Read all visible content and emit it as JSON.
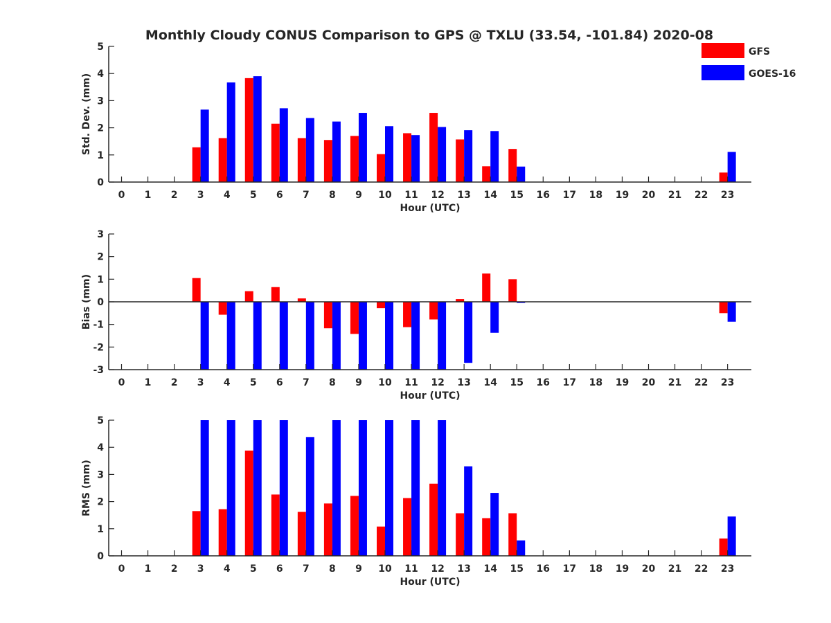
{
  "title": "Monthly Cloudy CONUS Comparison to GPS @ TXLU (33.54, -101.84) 2020-08",
  "legend": {
    "placement": "top-right",
    "entries": [
      {
        "label": "GFS",
        "color": "#ff0000"
      },
      {
        "label": "GOES-16",
        "color": "#0000ff"
      }
    ]
  },
  "chart_data": [
    {
      "type": "bar",
      "ylabel": "Std. Dev. (mm)",
      "xlabel": "Hour (UTC)",
      "ylim": [
        0,
        5
      ],
      "yticks": [
        0,
        1,
        2,
        3,
        4,
        5
      ],
      "categories": [
        "0",
        "1",
        "2",
        "3",
        "4",
        "5",
        "6",
        "7",
        "8",
        "9",
        "10",
        "11",
        "12",
        "13",
        "14",
        "15",
        "16",
        "17",
        "18",
        "19",
        "20",
        "21",
        "22",
        "23"
      ],
      "series": [
        {
          "name": "GFS",
          "color": "#ff0000",
          "values": [
            null,
            null,
            null,
            1.28,
            1.62,
            3.83,
            2.15,
            1.62,
            1.55,
            1.7,
            1.03,
            1.8,
            2.55,
            1.57,
            0.58,
            1.22,
            null,
            null,
            null,
            null,
            null,
            null,
            null,
            0.35
          ]
        },
        {
          "name": "GOES-16",
          "color": "#0000ff",
          "values": [
            null,
            null,
            null,
            2.67,
            3.67,
            3.9,
            2.72,
            2.36,
            2.23,
            2.55,
            2.06,
            1.73,
            2.03,
            1.91,
            1.88,
            0.57,
            null,
            null,
            null,
            null,
            null,
            null,
            null,
            1.11
          ]
        }
      ]
    },
    {
      "type": "bar",
      "ylabel": "Bias (mm)",
      "xlabel": "Hour (UTC)",
      "ylim": [
        -3,
        3
      ],
      "yticks": [
        -3,
        -2,
        -1,
        0,
        1,
        2,
        3
      ],
      "zero_line": true,
      "categories": [
        "0",
        "1",
        "2",
        "3",
        "4",
        "5",
        "6",
        "7",
        "8",
        "9",
        "10",
        "11",
        "12",
        "13",
        "14",
        "15",
        "16",
        "17",
        "18",
        "19",
        "20",
        "21",
        "22",
        "23"
      ],
      "series": [
        {
          "name": "GFS",
          "color": "#ff0000",
          "values": [
            null,
            null,
            null,
            1.05,
            -0.57,
            0.47,
            0.65,
            0.15,
            -1.17,
            -1.42,
            -0.28,
            -1.12,
            -0.78,
            0.12,
            1.25,
            1.0,
            null,
            null,
            null,
            null,
            null,
            null,
            null,
            -0.5
          ]
        },
        {
          "name": "GOES-16",
          "color": "#0000ff",
          "values": [
            null,
            null,
            null,
            -3.0,
            -3.0,
            -3.0,
            -3.0,
            -3.0,
            -3.0,
            -3.0,
            -3.0,
            -3.0,
            -3.0,
            -2.7,
            -1.37,
            -0.05,
            null,
            null,
            null,
            null,
            null,
            null,
            null,
            -0.88
          ]
        }
      ]
    },
    {
      "type": "bar",
      "ylabel": "RMS (mm)",
      "xlabel": "Hour (UTC)",
      "ylim": [
        0,
        5
      ],
      "yticks": [
        0,
        1,
        2,
        3,
        4,
        5
      ],
      "categories": [
        "0",
        "1",
        "2",
        "3",
        "4",
        "5",
        "6",
        "7",
        "8",
        "9",
        "10",
        "11",
        "12",
        "13",
        "14",
        "15",
        "16",
        "17",
        "18",
        "19",
        "20",
        "21",
        "22",
        "23"
      ],
      "series": [
        {
          "name": "GFS",
          "color": "#ff0000",
          "values": [
            null,
            null,
            null,
            1.65,
            1.72,
            3.88,
            2.26,
            1.62,
            1.93,
            2.21,
            1.08,
            2.13,
            2.66,
            1.57,
            1.39,
            1.57,
            null,
            null,
            null,
            null,
            null,
            null,
            null,
            0.64
          ]
        },
        {
          "name": "GOES-16",
          "color": "#0000ff",
          "values": [
            null,
            null,
            null,
            5.0,
            5.0,
            5.0,
            5.0,
            4.38,
            5.0,
            5.0,
            5.0,
            5.0,
            5.0,
            3.3,
            2.32,
            0.57,
            null,
            null,
            null,
            null,
            null,
            null,
            null,
            1.45
          ]
        }
      ]
    }
  ]
}
